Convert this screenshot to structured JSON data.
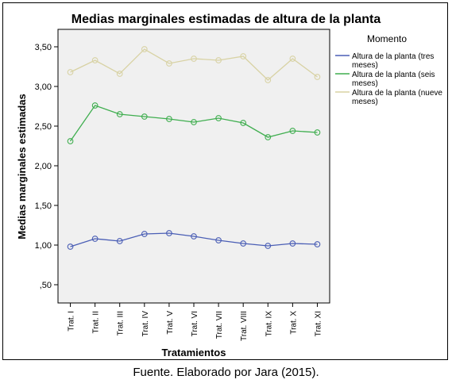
{
  "chart_data": {
    "type": "line",
    "title": "Medias marginales estimadas de altura de la planta",
    "xlabel": "Tratamientos",
    "ylabel": "Medias marginales estimadas",
    "categories": [
      "Trat. I",
      "Trat. II",
      "Trat. III",
      "Trat. IV",
      "Trat. V",
      "Trat. VI",
      "Trat. VII",
      "Trat. VIII",
      "Trat. IX",
      "Trat. X",
      "Trat. XI"
    ],
    "ylim": [
      0.27,
      3.72
    ],
    "yticks": [
      0.5,
      1.0,
      1.5,
      2.0,
      2.5,
      3.0,
      3.5
    ],
    "ytick_labels": [
      ",50",
      "1,00",
      "1,50",
      "2,00",
      "2,50",
      "3,00",
      "3,50"
    ],
    "grid": false,
    "legend_title": "Momento",
    "legend_position": "right",
    "series": [
      {
        "name": "Altura de la planta (tres meses)",
        "name_lines": [
          "Altura de la planta (tres",
          "meses)"
        ],
        "color": "#4a5eb5",
        "values": [
          0.98,
          1.08,
          1.05,
          1.14,
          1.15,
          1.11,
          1.06,
          1.02,
          0.99,
          1.02,
          1.01
        ]
      },
      {
        "name": "Altura de la planta (seis meses)",
        "name_lines": [
          "Altura de la planta (seis",
          "meses)"
        ],
        "color": "#3fae4f",
        "values": [
          2.31,
          2.76,
          2.65,
          2.62,
          2.59,
          2.55,
          2.6,
          2.54,
          2.36,
          2.44,
          2.42
        ]
      },
      {
        "name": "Altura de la planta (nueve meses)",
        "name_lines": [
          "Altura de la planta (nueve",
          "meses)"
        ],
        "color": "#d8d2a4",
        "values": [
          3.18,
          3.33,
          3.16,
          3.47,
          3.29,
          3.35,
          3.33,
          3.38,
          3.08,
          3.35,
          3.12
        ]
      }
    ]
  },
  "caption": "Fuente. Elaborado por Jara (2015)."
}
